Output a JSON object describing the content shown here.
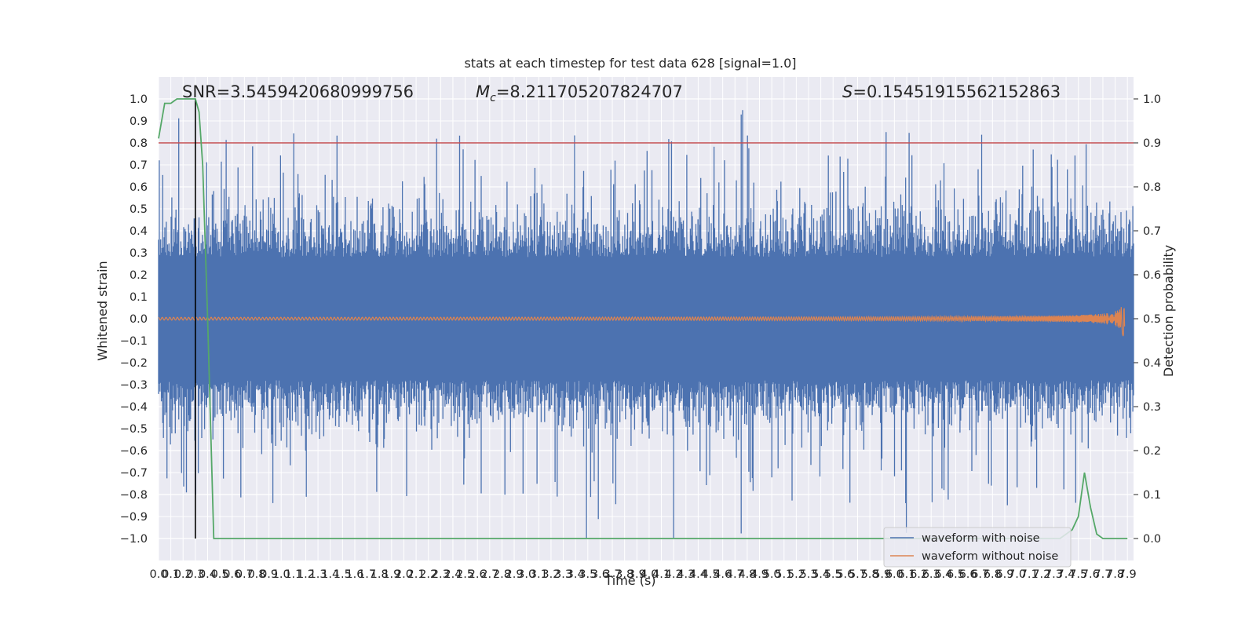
{
  "chart_data": {
    "type": "line",
    "title": "stats at each timestep for test data 628 [signal=1.0]",
    "xlabel": "Time (s)",
    "ylabel": "Whitened strain",
    "y2label": "Detection probability",
    "xlim": [
      0.0,
      7.95
    ],
    "ylim": [
      -1.1,
      1.1
    ],
    "y2lim": [
      -0.05,
      1.05
    ],
    "x_ticks": [
      0.0,
      0.1,
      0.2,
      0.3,
      0.4,
      0.5,
      0.6,
      0.7,
      0.8,
      0.9,
      1.0,
      1.1,
      1.2,
      1.3,
      1.4,
      1.5,
      1.6,
      1.7,
      1.8,
      1.9,
      2.0,
      2.1,
      2.2,
      2.3,
      2.4,
      2.5,
      2.6,
      2.7,
      2.8,
      2.9,
      3.0,
      3.1,
      3.2,
      3.3,
      3.4,
      3.5,
      3.6,
      3.7,
      3.8,
      3.9,
      4.0,
      4.1,
      4.2,
      4.3,
      4.4,
      4.5,
      4.6,
      4.7,
      4.8,
      4.9,
      5.0,
      5.1,
      5.2,
      5.3,
      5.4,
      5.5,
      5.6,
      5.7,
      5.8,
      5.9,
      6.0,
      6.1,
      6.2,
      6.3,
      6.4,
      6.5,
      6.6,
      6.7,
      6.8,
      6.9,
      7.0,
      7.1,
      7.2,
      7.3,
      7.4,
      7.5,
      7.6,
      7.7,
      7.8,
      7.9
    ],
    "x_tick_labels": [
      "0.0",
      "0.1",
      "0.2",
      "0.3",
      "0.4",
      "0.5",
      "0.6",
      "0.7",
      "0.8",
      "0.9",
      "1.0",
      "1.1",
      "1.2",
      "1.3",
      "1.4",
      "1.5",
      "1.6",
      "1.7",
      "1.8",
      "1.9",
      "2.0",
      "2.1",
      "2.2",
      "2.3",
      "2.4",
      "2.5",
      "2.6",
      "2.7",
      "2.8",
      "2.9",
      "3.0",
      "3.1",
      "3.2",
      "3.3",
      "3.4",
      "3.5",
      "3.6",
      "3.7",
      "3.8",
      "3.9",
      "4.0",
      "4.1",
      "4.2",
      "4.3",
      "4.4",
      "4.5",
      "4.6",
      "4.7",
      "4.8",
      "4.9",
      "5.0",
      "5.1",
      "5.2",
      "5.3",
      "5.4",
      "5.5",
      "5.6",
      "5.7",
      "5.8",
      "5.9",
      "6.0",
      "6.1",
      "6.2",
      "6.3",
      "6.4",
      "6.5",
      "6.6",
      "6.7",
      "6.8",
      "6.9",
      "7.0",
      "7.1",
      "7.2",
      "7.3",
      "7.4",
      "7.5",
      "7.6",
      "7.7",
      "7.8",
      "7.9"
    ],
    "y_ticks": [
      1.0,
      0.9,
      0.8,
      0.7,
      0.6,
      0.5,
      0.4,
      0.3,
      0.2,
      0.1,
      0.0,
      -0.1,
      -0.2,
      -0.3,
      -0.4,
      -0.5,
      -0.6,
      -0.7,
      -0.8,
      -0.9,
      -1.0
    ],
    "y_tick_labels": [
      "1.0",
      "0.9",
      "0.8",
      "0.7",
      "0.6",
      "0.5",
      "0.4",
      "0.3",
      "0.2",
      "0.1",
      "0.0",
      "−0.1",
      "−0.2",
      "−0.3",
      "−0.4",
      "−0.5",
      "−0.6",
      "−0.7",
      "−0.8",
      "−0.9",
      "−1.0"
    ],
    "y2_ticks": [
      1.0,
      0.9,
      0.8,
      0.7,
      0.6,
      0.5,
      0.4,
      0.3,
      0.2,
      0.1,
      0.0
    ],
    "y2_tick_labels": [
      "1.0",
      "0.9",
      "0.8",
      "0.7",
      "0.6",
      "0.5",
      "0.4",
      "0.3",
      "0.2",
      "0.1",
      "0.0"
    ],
    "grid": true,
    "annotations": {
      "snr": "SNR=3.5459420680999756",
      "mc_symbol": "M",
      "mc_sub": "c",
      "mc_value": "=8.211705207824707",
      "s_symbol": "S",
      "s_value": "=0.15451915562152863"
    },
    "threshold_y2": 0.9,
    "marker_x": 0.3,
    "legend_position": "lower right",
    "series": [
      {
        "name": "waveform with noise",
        "color": "#4c72b0",
        "description_points": "dense noise spanning approx ±0.4 with spikes up to ±1.0"
      },
      {
        "name": "waveform without noise",
        "color": "#dd8452",
        "chirp_end_x": 7.88,
        "chirp_peak_amplitude": 0.15
      }
    ],
    "detection_probability": {
      "color": "#55a868",
      "x": [
        0.0,
        0.05,
        0.1,
        0.15,
        0.2,
        0.25,
        0.3,
        0.33,
        0.36,
        0.4,
        0.45,
        0.5,
        1.0,
        2.0,
        3.0,
        4.0,
        5.0,
        6.0,
        7.0,
        7.35,
        7.45,
        7.5,
        7.55,
        7.6,
        7.65,
        7.7,
        7.75,
        7.8,
        7.9
      ],
      "y": [
        0.91,
        0.99,
        0.99,
        1.0,
        1.0,
        1.0,
        1.0,
        0.97,
        0.85,
        0.5,
        0.0,
        0.0,
        0.0,
        0.0,
        0.0,
        0.0,
        0.0,
        0.0,
        0.0,
        0.0,
        0.02,
        0.05,
        0.15,
        0.07,
        0.01,
        0.0,
        0.0,
        0.0,
        0.0
      ]
    }
  },
  "colors": {
    "plot_bg": "#eaeaf2",
    "grid": "#ffffff",
    "threshold": "#c44e52",
    "marker": "#000000"
  }
}
